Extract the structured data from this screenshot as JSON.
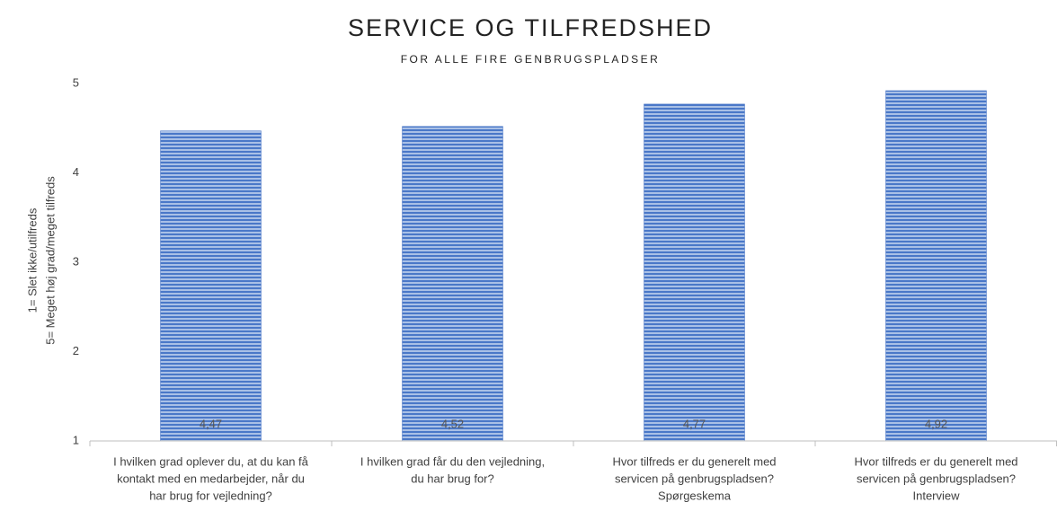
{
  "chart_data": {
    "type": "bar",
    "title": "SERVICE OG TILFREDSHED",
    "subtitle": "FOR ALLE FIRE GENBRUGSPLADSER",
    "ylabel": [
      "1= Slet ikke/utilfreds",
      "5= Meget høj grad/meget tilfreds"
    ],
    "categories": [
      [
        "I hvilken grad oplever du, at du kan få",
        "kontakt med en medarbejder, når du",
        "har brug for vejledning?"
      ],
      [
        "I hvilken grad får du den vejledning,",
        "du har brug for?"
      ],
      [
        "Hvor tilfreds er du generelt med",
        "servicen på genbrugspladsen?",
        "Spørgeskema"
      ],
      [
        "Hvor tilfreds er du generelt med",
        "servicen på genbrugspladsen?",
        "Interview"
      ]
    ],
    "values": [
      4.47,
      4.52,
      4.77,
      4.92
    ],
    "value_labels": [
      "4,47",
      "4,52",
      "4,77",
      "4,92"
    ],
    "color": "#4472c4",
    "ylim": [
      1,
      5
    ],
    "yticks": [
      1,
      2,
      3,
      4,
      5
    ],
    "grid": false
  }
}
